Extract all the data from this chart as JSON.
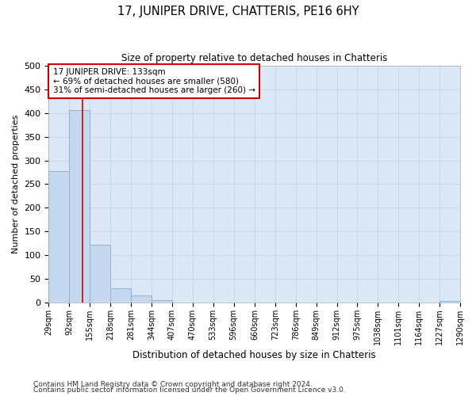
{
  "title": "17, JUNIPER DRIVE, CHATTERIS, PE16 6HY",
  "subtitle": "Size of property relative to detached houses in Chatteris",
  "xlabel": "Distribution of detached houses by size in Chatteris",
  "ylabel": "Number of detached properties",
  "bin_edges": [
    29,
    92,
    155,
    218,
    281,
    344,
    407,
    470,
    533,
    596,
    660,
    723,
    786,
    849,
    912,
    975,
    1038,
    1101,
    1164,
    1227,
    1290
  ],
  "bar_heights": [
    277,
    407,
    121,
    29,
    15,
    4,
    0,
    0,
    0,
    0,
    0,
    0,
    0,
    0,
    0,
    0,
    0,
    0,
    0,
    3
  ],
  "bar_color": "#c5d8ef",
  "bar_edge_color": "#8ab4d8",
  "property_size": 133,
  "vline_color": "#cc0000",
  "annotation_line1": "17 JUNIPER DRIVE: 133sqm",
  "annotation_line2": "← 69% of detached houses are smaller (580)",
  "annotation_line3": "31% of semi-detached houses are larger (260) →",
  "annotation_box_color": "#ffffff",
  "annotation_box_edge": "#cc0000",
  "grid_color": "#c8d8ec",
  "bg_color": "#dce8f5",
  "ylim": [
    0,
    500
  ],
  "yticks": [
    0,
    50,
    100,
    150,
    200,
    250,
    300,
    350,
    400,
    450,
    500
  ],
  "footer_line1": "Contains HM Land Registry data © Crown copyright and database right 2024.",
  "footer_line2": "Contains public sector information licensed under the Open Government Licence v3.0."
}
